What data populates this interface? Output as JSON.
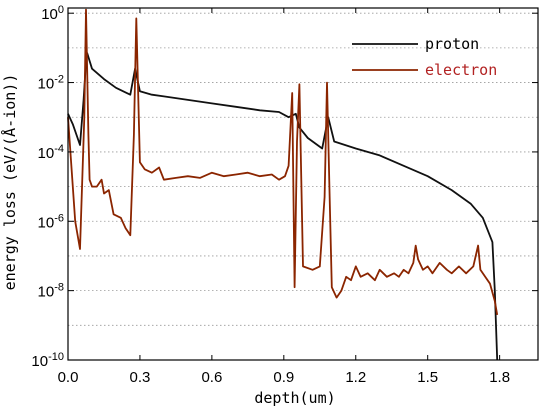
{
  "chart_data": {
    "type": "line",
    "xlabel": "depth(um)",
    "ylabel": "energy loss (eV/(Å-ion))",
    "xlim": [
      0.0,
      1.96
    ],
    "ylim_log10": [
      -10,
      0.15
    ],
    "y_scale": "log",
    "grid": "horizontal dotted",
    "legend_position": "top-right",
    "x_ticks": [
      "0.0",
      "0.3",
      "0.6",
      "0.9",
      "1.2",
      "1.5",
      "1.8"
    ],
    "x_tick_values": [
      0.0,
      0.3,
      0.6,
      0.9,
      1.2,
      1.5,
      1.8
    ],
    "y_ticks": [
      {
        "base": "10",
        "exp": "0",
        "value": 0
      },
      {
        "base": "10",
        "exp": "-2",
        "value": -2
      },
      {
        "base": "10",
        "exp": "-4",
        "value": -4
      },
      {
        "base": "10",
        "exp": "-6",
        "value": -6
      },
      {
        "base": "10",
        "exp": "-8",
        "value": -8
      },
      {
        "base": "10",
        "exp": "-10",
        "value": -10
      }
    ],
    "series": [
      {
        "name": "proton",
        "color": "#111111",
        "points": [
          [
            0.0,
            -2.9
          ],
          [
            0.02,
            -3.2
          ],
          [
            0.05,
            -3.8
          ],
          [
            0.065,
            -2.5
          ],
          [
            0.075,
            -1.4
          ],
          [
            0.08,
            -1.15
          ],
          [
            0.1,
            -1.6
          ],
          [
            0.15,
            -1.9
          ],
          [
            0.2,
            -2.15
          ],
          [
            0.26,
            -2.35
          ],
          [
            0.28,
            -1.6
          ],
          [
            0.3,
            -2.25
          ],
          [
            0.35,
            -2.35
          ],
          [
            0.4,
            -2.4
          ],
          [
            0.5,
            -2.5
          ],
          [
            0.6,
            -2.6
          ],
          [
            0.7,
            -2.7
          ],
          [
            0.8,
            -2.8
          ],
          [
            0.88,
            -2.85
          ],
          [
            0.92,
            -3.0
          ],
          [
            0.95,
            -2.9
          ],
          [
            0.965,
            -3.3
          ],
          [
            1.0,
            -3.6
          ],
          [
            1.06,
            -3.9
          ],
          [
            1.085,
            -3.0
          ],
          [
            1.11,
            -3.7
          ],
          [
            1.2,
            -3.9
          ],
          [
            1.3,
            -4.1
          ],
          [
            1.4,
            -4.4
          ],
          [
            1.5,
            -4.7
          ],
          [
            1.6,
            -5.1
          ],
          [
            1.68,
            -5.5
          ],
          [
            1.73,
            -5.9
          ],
          [
            1.77,
            -6.6
          ],
          [
            1.78,
            -8.0
          ],
          [
            1.79,
            -10.0
          ]
        ]
      },
      {
        "name": "electron",
        "color": "#8B2500",
        "points": [
          [
            0.0,
            -3.0
          ],
          [
            0.01,
            -4.0
          ],
          [
            0.03,
            -6.0
          ],
          [
            0.05,
            -6.8
          ],
          [
            0.068,
            -3.0
          ],
          [
            0.075,
            0.1
          ],
          [
            0.085,
            -3.5
          ],
          [
            0.09,
            -4.8
          ],
          [
            0.1,
            -5.0
          ],
          [
            0.12,
            -5.0
          ],
          [
            0.14,
            -4.8
          ],
          [
            0.15,
            -5.2
          ],
          [
            0.17,
            -5.1
          ],
          [
            0.19,
            -5.8
          ],
          [
            0.22,
            -5.9
          ],
          [
            0.24,
            -6.2
          ],
          [
            0.26,
            -6.4
          ],
          [
            0.275,
            -3.5
          ],
          [
            0.285,
            -0.15
          ],
          [
            0.3,
            -4.3
          ],
          [
            0.32,
            -4.5
          ],
          [
            0.35,
            -4.6
          ],
          [
            0.38,
            -4.45
          ],
          [
            0.4,
            -4.8
          ],
          [
            0.45,
            -4.75
          ],
          [
            0.5,
            -4.7
          ],
          [
            0.55,
            -4.75
          ],
          [
            0.6,
            -4.6
          ],
          [
            0.65,
            -4.7
          ],
          [
            0.7,
            -4.65
          ],
          [
            0.75,
            -4.6
          ],
          [
            0.8,
            -4.7
          ],
          [
            0.85,
            -4.65
          ],
          [
            0.88,
            -4.8
          ],
          [
            0.905,
            -4.7
          ],
          [
            0.92,
            -4.4
          ],
          [
            0.935,
            -2.3
          ],
          [
            0.945,
            -7.9
          ],
          [
            0.955,
            -3.7
          ],
          [
            0.965,
            -2.05
          ],
          [
            0.98,
            -7.3
          ],
          [
            1.02,
            -7.4
          ],
          [
            1.05,
            -7.3
          ],
          [
            1.07,
            -5.3
          ],
          [
            1.08,
            -2.0
          ],
          [
            1.09,
            -5.0
          ],
          [
            1.1,
            -7.9
          ],
          [
            1.12,
            -8.2
          ],
          [
            1.14,
            -8.0
          ],
          [
            1.16,
            -7.6
          ],
          [
            1.18,
            -7.7
          ],
          [
            1.2,
            -7.3
          ],
          [
            1.22,
            -7.6
          ],
          [
            1.25,
            -7.5
          ],
          [
            1.28,
            -7.7
          ],
          [
            1.3,
            -7.4
          ],
          [
            1.33,
            -7.6
          ],
          [
            1.36,
            -7.5
          ],
          [
            1.38,
            -7.6
          ],
          [
            1.4,
            -7.4
          ],
          [
            1.42,
            -7.5
          ],
          [
            1.44,
            -7.2
          ],
          [
            1.45,
            -6.7
          ],
          [
            1.46,
            -7.1
          ],
          [
            1.48,
            -7.4
          ],
          [
            1.5,
            -7.3
          ],
          [
            1.52,
            -7.5
          ],
          [
            1.55,
            -7.2
          ],
          [
            1.58,
            -7.4
          ],
          [
            1.6,
            -7.5
          ],
          [
            1.63,
            -7.3
          ],
          [
            1.66,
            -7.5
          ],
          [
            1.69,
            -7.3
          ],
          [
            1.7,
            -7.0
          ],
          [
            1.71,
            -6.7
          ],
          [
            1.72,
            -7.4
          ],
          [
            1.74,
            -7.6
          ],
          [
            1.76,
            -7.8
          ],
          [
            1.78,
            -8.3
          ],
          [
            1.79,
            -8.7
          ]
        ]
      }
    ]
  }
}
